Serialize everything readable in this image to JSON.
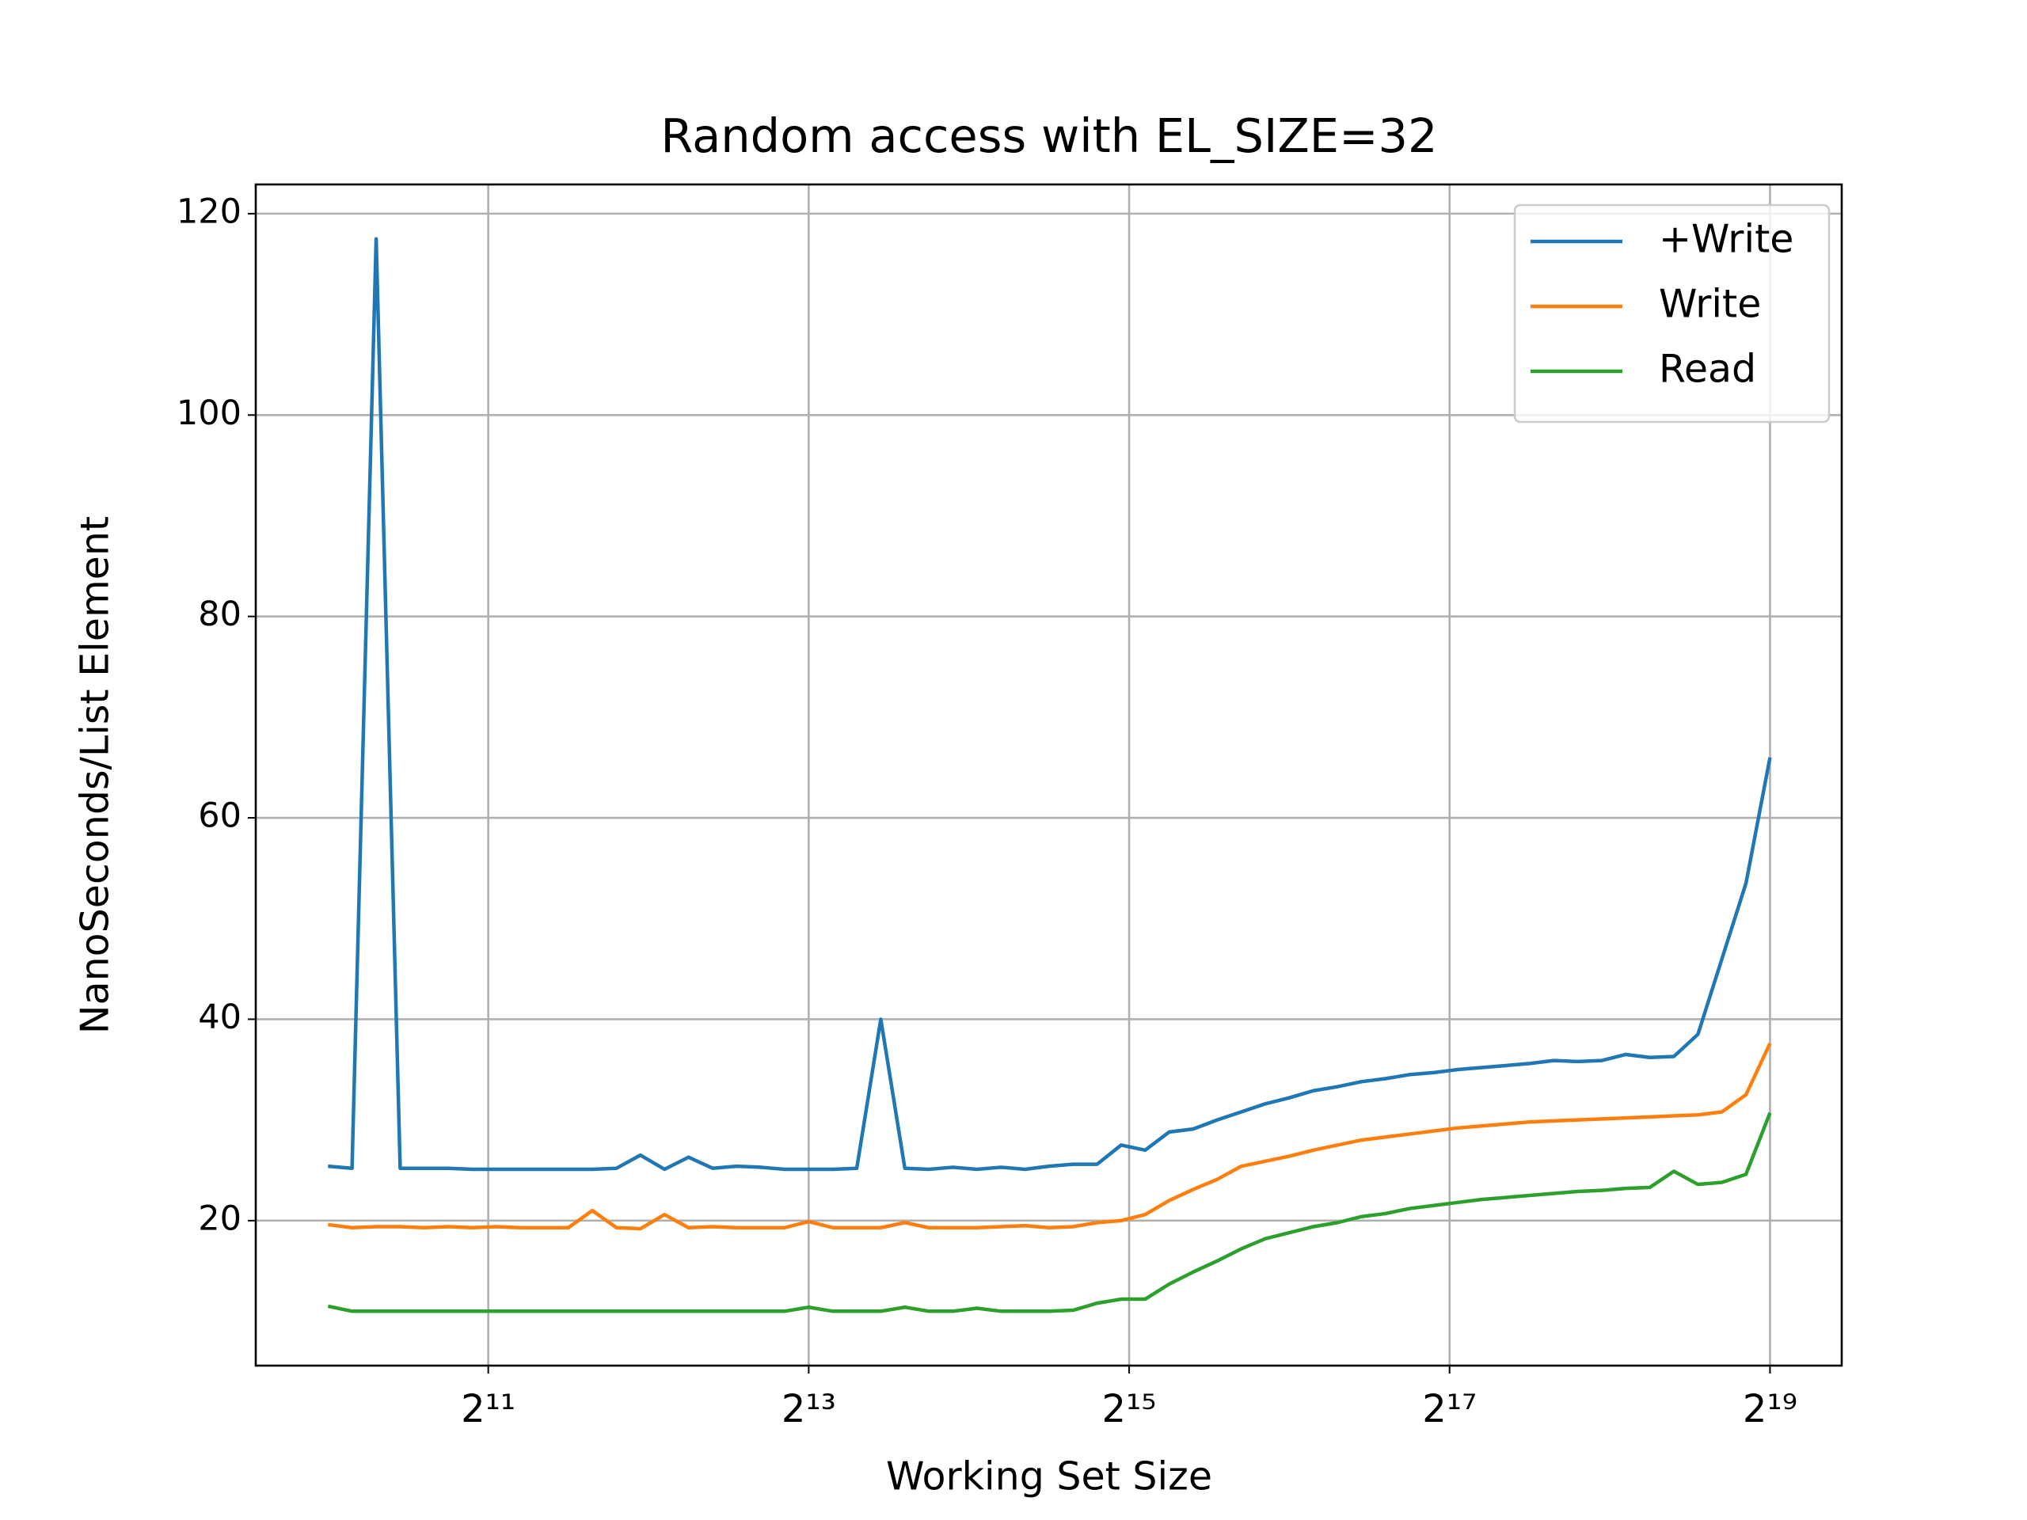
{
  "chart_data": {
    "type": "line",
    "title": "Random access with EL_SIZE=32",
    "xlabel": "Working Set Size",
    "ylabel": "NanoSeconds/List Element",
    "xscale": "log",
    "grid": true,
    "legend": "upper right",
    "x": [
      1024,
      1136,
      1261,
      1399,
      1552,
      1722,
      1911,
      2120,
      2353,
      2610,
      2896,
      3213,
      3566,
      3956,
      4390,
      4871,
      5405,
      5997,
      6654,
      7383,
      8192,
      9090,
      10086,
      11191,
      12417,
      13777,
      15287,
      16962,
      18820,
      20882,
      23170,
      25709,
      28526,
      31651,
      35120,
      38968,
      43238,
      47975,
      53232,
      59064,
      65536,
      72717,
      80684,
      89525,
      99334,
      110218,
      122295,
      135695,
      150562,
      167059,
      185364,
      205674,
      228209,
      253214,
      280958,
      311743,
      345900,
      383801,
      425854,
      472514,
      524288
    ],
    "xlim": [
      749,
      715000
    ],
    "xticks": [
      {
        "value": 2048,
        "label": "2¹¹"
      },
      {
        "value": 8192,
        "label": "2¹³"
      },
      {
        "value": 32768,
        "label": "2¹⁵"
      },
      {
        "value": 131072,
        "label": "2¹⁷"
      },
      {
        "value": 524288,
        "label": "2¹⁹"
      }
    ],
    "ylim": [
      5.6,
      122.9
    ],
    "yticks": [
      20,
      40,
      60,
      80,
      100,
      120
    ],
    "series": [
      {
        "name": "+Write",
        "color": "#1f77b4",
        "values": [
          25.4,
          25.2,
          117.5,
          25.2,
          25.2,
          25.2,
          25.1,
          25.1,
          25.1,
          25.1,
          25.1,
          25.1,
          25.2,
          26.5,
          25.1,
          26.3,
          25.2,
          25.4,
          25.3,
          25.1,
          25.1,
          25.1,
          25.2,
          40.0,
          25.2,
          25.1,
          25.3,
          25.1,
          25.3,
          25.1,
          25.4,
          25.6,
          25.6,
          27.5,
          27.0,
          28.8,
          29.1,
          30.0,
          30.8,
          31.6,
          32.2,
          32.9,
          33.3,
          33.8,
          34.1,
          34.5,
          34.7,
          35.0,
          35.2,
          35.4,
          35.6,
          35.9,
          35.8,
          35.9,
          36.5,
          36.2,
          36.3,
          38.5,
          46.0,
          53.5,
          66.0
        ]
      },
      {
        "name": "Write",
        "color": "#ff7f0e",
        "values": [
          19.6,
          19.3,
          19.4,
          19.4,
          19.3,
          19.4,
          19.3,
          19.4,
          19.3,
          19.3,
          19.3,
          21.0,
          19.3,
          19.2,
          20.6,
          19.3,
          19.4,
          19.3,
          19.3,
          19.3,
          19.9,
          19.3,
          19.3,
          19.3,
          19.8,
          19.3,
          19.3,
          19.3,
          19.4,
          19.5,
          19.3,
          19.4,
          19.8,
          20.0,
          20.6,
          22.0,
          23.1,
          24.1,
          25.4,
          25.9,
          26.4,
          27.0,
          27.5,
          28.0,
          28.3,
          28.6,
          28.9,
          29.2,
          29.4,
          29.6,
          29.8,
          29.9,
          30.0,
          30.1,
          30.2,
          30.3,
          30.4,
          30.5,
          30.8,
          32.5,
          37.6
        ]
      },
      {
        "name": "Read",
        "color": "#2ca02c",
        "values": [
          11.5,
          11.0,
          11.0,
          11.0,
          11.0,
          11.0,
          11.0,
          11.0,
          11.0,
          11.0,
          11.0,
          11.0,
          11.0,
          11.0,
          11.0,
          11.0,
          11.0,
          11.0,
          11.0,
          11.0,
          11.4,
          11.0,
          11.0,
          11.0,
          11.4,
          11.0,
          11.0,
          11.3,
          11.0,
          11.0,
          11.0,
          11.1,
          11.8,
          12.2,
          12.2,
          13.7,
          14.9,
          16.0,
          17.2,
          18.2,
          18.8,
          19.4,
          19.8,
          20.4,
          20.7,
          21.2,
          21.5,
          21.8,
          22.1,
          22.3,
          22.5,
          22.7,
          22.9,
          23.0,
          23.2,
          23.3,
          24.9,
          23.6,
          23.8,
          24.6,
          30.7
        ]
      }
    ]
  }
}
